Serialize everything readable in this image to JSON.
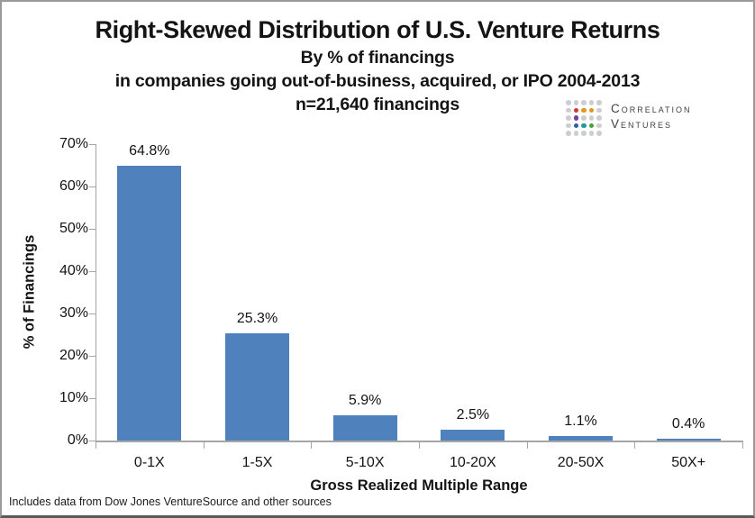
{
  "chart_data": {
    "type": "bar",
    "title": "Right-Skewed Distribution of U.S. Venture Returns",
    "subtitle": [
      "By % of financings",
      "in companies going out-of-business, acquired, or IPO 2004-2013",
      "n=21,640 financings"
    ],
    "categories": [
      "0-1X",
      "1-5X",
      "5-10X",
      "10-20X",
      "20-50X",
      "50X+"
    ],
    "values": [
      64.8,
      25.3,
      5.9,
      2.5,
      1.1,
      0.4
    ],
    "value_labels": [
      "64.8%",
      "25.3%",
      "5.9%",
      "2.5%",
      "1.1%",
      "0.4%"
    ],
    "xlabel": "Gross Realized Multiple Range",
    "ylabel": "% of Financings",
    "ylim": [
      0,
      70
    ],
    "ytick_step": 10,
    "ytick_labels": [
      "0%",
      "10%",
      "20%",
      "30%",
      "40%",
      "50%",
      "60%",
      "70%"
    ],
    "bar_color": "#4f81bd",
    "grid": false,
    "legend": "none"
  },
  "logo": {
    "line1": "Correlation",
    "line2": "Ventures",
    "text_color": "#414042",
    "dot_palette": {
      "g": "#cdced2",
      "r": "#cf3a2d",
      "o": "#e6951d",
      "p": "#7c3f98",
      "b": "#2f5fa5",
      "t": "#2097a3",
      "n": "#43a13f"
    },
    "dot_grid": [
      [
        "g",
        "g",
        "g",
        "g",
        "g"
      ],
      [
        "g",
        "r",
        "o",
        "o",
        "g"
      ],
      [
        "g",
        "p",
        "g",
        "g",
        "g"
      ],
      [
        "g",
        "b",
        "t",
        "n",
        "g"
      ],
      [
        "g",
        "g",
        "g",
        "g",
        "g"
      ]
    ]
  },
  "footer": {
    "source_note": "Includes data from Dow Jones VentureSource and other sources"
  },
  "colors": {
    "bar": "#4f81bd",
    "axis": "#a6a6a6",
    "text": "#141414",
    "border": "#9a9a9a"
  }
}
